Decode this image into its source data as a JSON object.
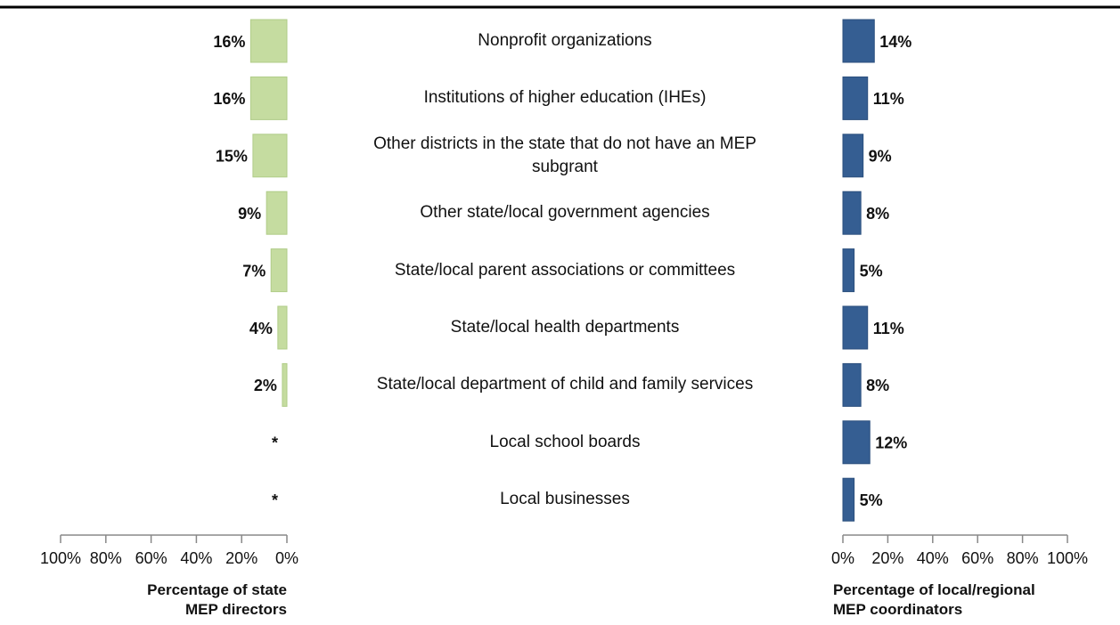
{
  "chart_data": {
    "type": "butterfly",
    "categories": [
      "Nonprofit organizations",
      "Institutions of higher education (IHEs)",
      "Other districts in the state that do not have an MEP\nsubgrant",
      "Other state/local government agencies",
      "State/local parent associations or committees",
      "State/local health departments",
      "State/local department of child and family services",
      "Local school boards",
      "Local businesses"
    ],
    "series": [
      {
        "name": "Percentage of state\nMEP directors",
        "color": "#c5dca0",
        "values": [
          16,
          16,
          15,
          9,
          7,
          4,
          2,
          null,
          null
        ],
        "value_labels": [
          "16%",
          "16%",
          "15%",
          "9%",
          "7%",
          "4%",
          "2%",
          "*",
          "*"
        ],
        "xlim": [
          100,
          0
        ],
        "xticks": [
          {
            "value": 100,
            "label": "100%"
          },
          {
            "value": 80,
            "label": "80%"
          },
          {
            "value": 60,
            "label": "60%"
          },
          {
            "value": 40,
            "label": "40%"
          },
          {
            "value": 20,
            "label": "20%"
          },
          {
            "value": 0,
            "label": "0%"
          }
        ]
      },
      {
        "name": "Percentage of local/regional\nMEP coordinators",
        "color": "#355e92",
        "values": [
          14,
          11,
          9,
          8,
          5,
          11,
          8,
          12,
          5
        ],
        "value_labels": [
          "14%",
          "11%",
          "9%",
          "8%",
          "5%",
          "11%",
          "8%",
          "12%",
          "5%"
        ],
        "xlim": [
          0,
          100
        ],
        "xticks": [
          {
            "value": 0,
            "label": "0%"
          },
          {
            "value": 20,
            "label": "20%"
          },
          {
            "value": 40,
            "label": "40%"
          },
          {
            "value": 60,
            "label": "60%"
          },
          {
            "value": 80,
            "label": "80%"
          },
          {
            "value": 100,
            "label": "100%"
          }
        ]
      }
    ]
  }
}
